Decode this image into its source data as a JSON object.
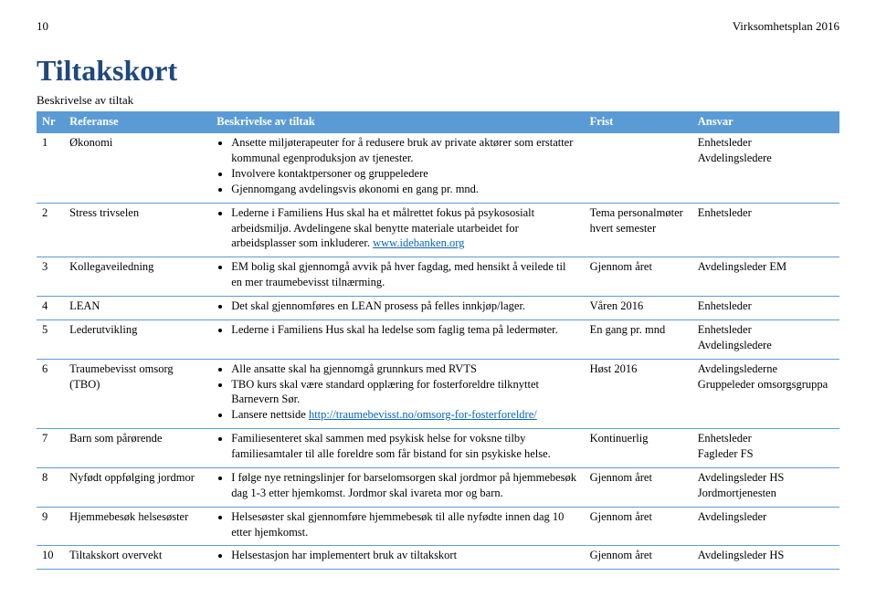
{
  "header": {
    "page_number": "10",
    "doc_title": "Virksomhetsplan 2016"
  },
  "title": "Tiltakskort",
  "subtitle": "Beskrivelse av tiltak",
  "columns": {
    "nr": "Nr",
    "ref": "Referanse",
    "besk": "Beskrivelse av tiltak",
    "frist": "Frist",
    "ansvar": "Ansvar"
  },
  "rows": [
    {
      "nr": "1",
      "ref": "Økonomi",
      "bullets": [
        "Ansette miljøterapeuter for å redusere bruk av private aktører som erstatter kommunal egenproduksjon av tjenester.",
        "Involvere kontaktpersoner og gruppeledere",
        "Gjennomgang avdelingsvis økonomi en gang pr. mnd."
      ],
      "frist": "",
      "ansvar": "Enhetsleder\nAvdelingsledere"
    },
    {
      "nr": "2",
      "ref": "Stress trivselen",
      "bullets": [
        "Lederne i Familiens Hus skal ha et målrettet fokus på psykososialt arbeidsmiljø. Avdelingene skal benytte materiale utarbeidet for arbeidsplasser som inkluderer. <a class=\"link\" data-name=\"link-idebanken\" data-interactable=\"true\">www.idebanken.org</a>"
      ],
      "frist": "Tema personalmøter hvert semester",
      "ansvar": "Enhetsleder"
    },
    {
      "nr": "3",
      "ref": "Kollegaveiledning",
      "bullets": [
        "EM bolig skal gjennomgå avvik på hver fagdag, med hensikt å veilede til en mer traumebevisst tilnærming."
      ],
      "frist": "Gjennom året",
      "ansvar": "Avdelingsleder EM"
    },
    {
      "nr": "4",
      "ref": " LEAN",
      "bullets": [
        "Det skal gjennomføres en LEAN prosess på felles innkjøp/lager."
      ],
      "frist": "Våren 2016",
      "ansvar": "Enhetsleder"
    },
    {
      "nr": "5",
      "ref": "Lederutvikling",
      "bullets": [
        "Lederne i Familiens Hus skal ha ledelse som faglig tema på ledermøter."
      ],
      "frist": "En gang pr. mnd",
      "ansvar": "Enhetsleder\nAvdelingsledere"
    },
    {
      "nr": "6",
      "ref": "Traumebevisst omsorg (TBO)",
      "bullets": [
        "Alle ansatte skal ha gjennomgå grunnkurs med RVTS",
        "TBO kurs skal være standard opplæring for fosterforeldre tilknyttet Barnevern Sør.",
        "Lansere nettside <a class=\"link\" data-name=\"link-traumebevisst\" data-interactable=\"true\">http://traumebevisst.no/omsorg-for-fosterforeldre/</a>"
      ],
      "frist": "Høst 2016",
      "ansvar": "Avdelingslederne\nGruppeleder omsorgsgruppa"
    },
    {
      "nr": "7",
      "ref": "Barn som pårørende",
      "bullets": [
        "Familiesenteret skal sammen med psykisk helse for voksne tilby familiesamtaler til alle foreldre som får bistand for sin psykiske helse."
      ],
      "frist": "Kontinuerlig",
      "ansvar": "Enhetsleder\nFagleder FS"
    },
    {
      "nr": "8",
      "ref": "Nyfødt oppfølging jordmor",
      "bullets": [
        "I følge nye retningslinjer for barselomsorgen skal jordmor på hjemmebesøk dag 1-3 etter hjemkomst. Jordmor skal ivareta mor og barn."
      ],
      "frist": "Gjennom året",
      "ansvar": "Avdelingsleder HS\nJordmortjenesten"
    },
    {
      "nr": "9",
      "ref": "Hjemmebesøk helsesøster",
      "bullets": [
        "Helsesøster skal gjennomføre hjemmebesøk til alle nyfødte innen dag 10 etter hjemkomst."
      ],
      "frist": "Gjennom året",
      "ansvar": "Avdelingsleder"
    },
    {
      "nr": "10",
      "ref": "Tiltakskort overvekt",
      "bullets": [
        "Helsestasjon har implementert bruk av tiltakskort"
      ],
      "frist": "Gjennom året",
      "ansvar": "Avdelingsleder HS"
    }
  ]
}
